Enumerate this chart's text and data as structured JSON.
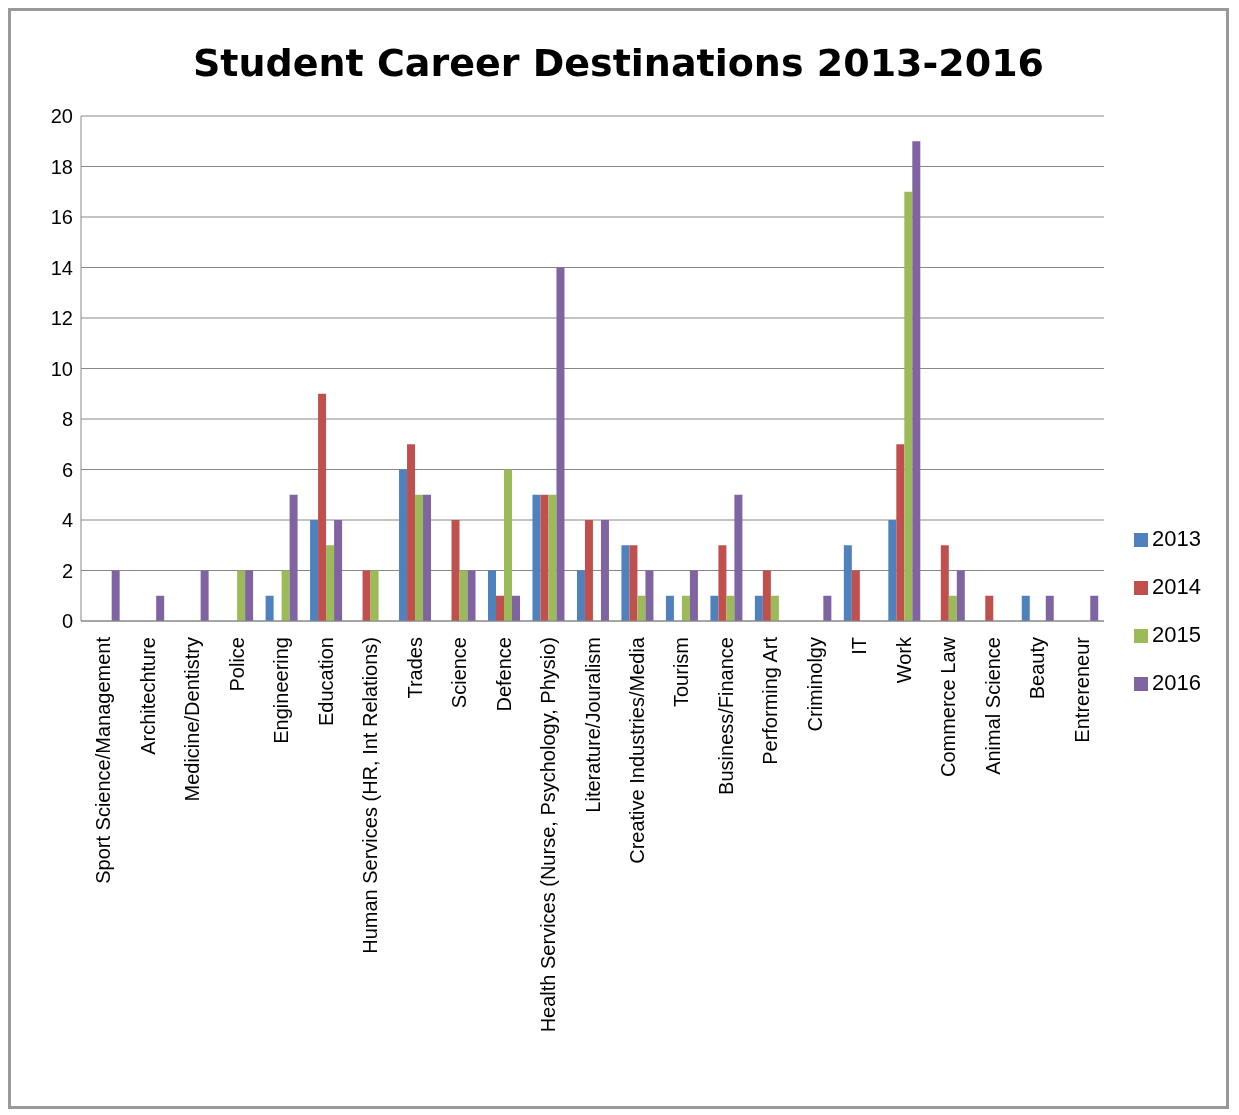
{
  "chart_data": {
    "type": "bar",
    "title": "Student Career Destinations 2013-2016",
    "categories": [
      "Sport Science/Management",
      "Architechture",
      "Medicine/Dentistry",
      "Police",
      "Engineering",
      "Education",
      "Human Services (HR, Int Relations)",
      "Trades",
      "Science",
      "Defence",
      "Health Services (Nurse, Psychology, Physio)",
      "Literature/Jouralism",
      "Creative Industries/Media",
      "Tourism",
      "Business/Finance",
      "Performing Art",
      "Criminolgy",
      "IT",
      "Work",
      "Commerce Law",
      "Animal Science",
      "Beauty",
      "Entrereneur"
    ],
    "series": [
      {
        "name": "2013",
        "color": "#4f81bd",
        "values": [
          0,
          0,
          0,
          0,
          1,
          4,
          0,
          6,
          0,
          2,
          5,
          2,
          3,
          1,
          1,
          1,
          0,
          3,
          4,
          0,
          0,
          1,
          0
        ]
      },
      {
        "name": "2014",
        "color": "#c0504d",
        "values": [
          0,
          0,
          0,
          0,
          0,
          9,
          2,
          7,
          4,
          1,
          5,
          4,
          3,
          0,
          3,
          2,
          0,
          2,
          7,
          3,
          1,
          0,
          0
        ]
      },
      {
        "name": "2015",
        "color": "#9bbb59",
        "values": [
          0,
          0,
          0,
          2,
          2,
          3,
          2,
          5,
          2,
          6,
          5,
          0,
          1,
          1,
          1,
          1,
          0,
          0,
          17,
          1,
          0,
          0,
          0
        ]
      },
      {
        "name": "2016",
        "color": "#8064a2",
        "values": [
          2,
          1,
          2,
          2,
          5,
          4,
          0,
          5,
          2,
          1,
          14,
          4,
          2,
          2,
          5,
          0,
          1,
          0,
          19,
          2,
          0,
          1,
          1
        ]
      }
    ],
    "ylim": [
      0,
      20
    ],
    "yticks": [
      0,
      2,
      4,
      6,
      8,
      10,
      12,
      14,
      16,
      18,
      20
    ],
    "grid": "y",
    "legend": "right"
  }
}
